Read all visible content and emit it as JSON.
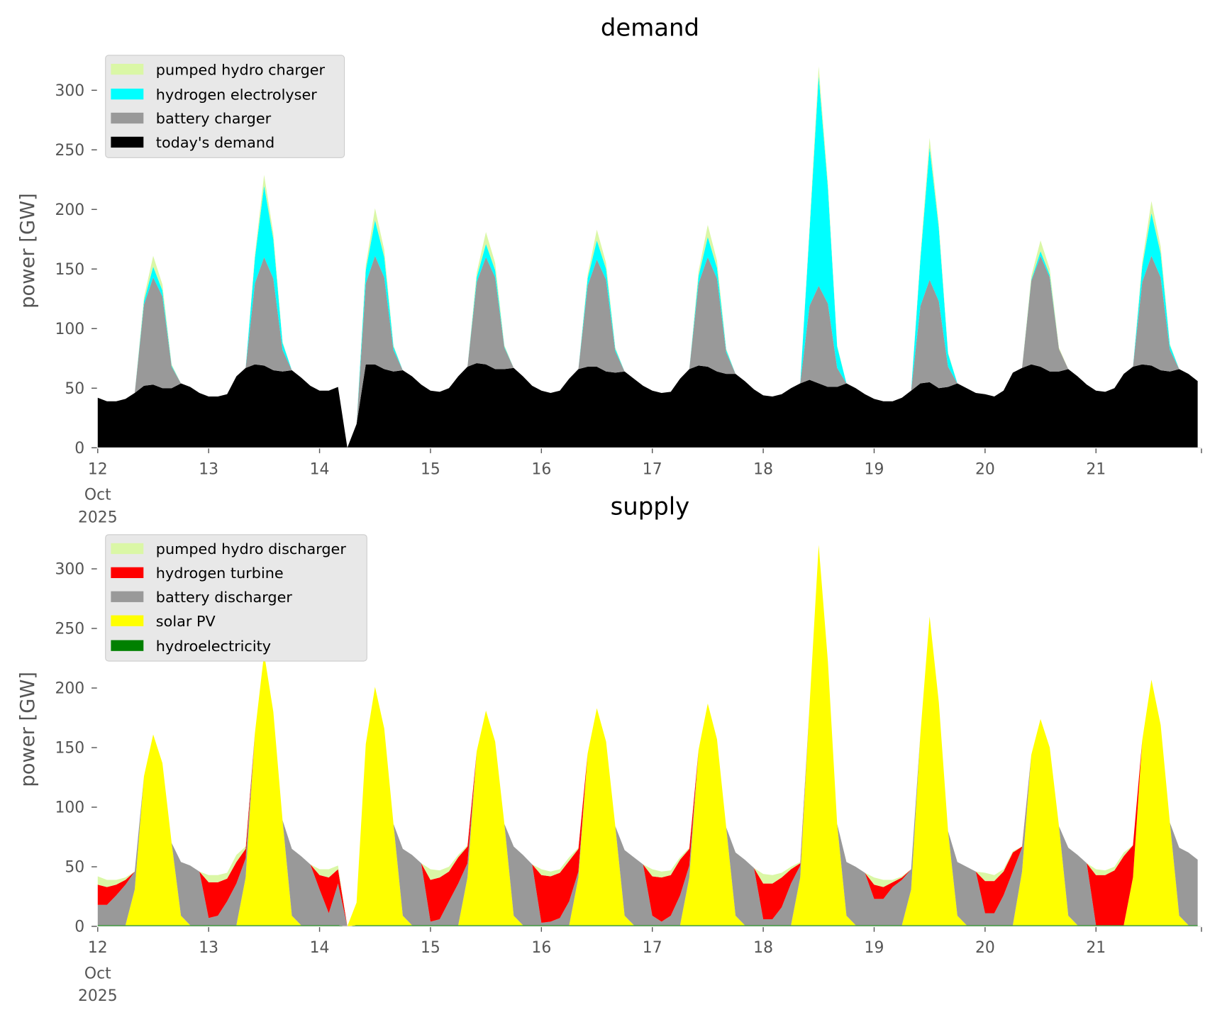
{
  "chart_data": [
    {
      "type": "area",
      "stacked": true,
      "title": "demand",
      "xlabel": "",
      "ylabel": "power [GW]",
      "ylim": [
        0,
        330
      ],
      "yticks": [
        0,
        50,
        100,
        150,
        200,
        250,
        300
      ],
      "x_start": "2025-10-12 00:00",
      "step_hours": 2,
      "xticklabels": [
        "12",
        "13",
        "14",
        "15",
        "16",
        "17",
        "18",
        "19",
        "20",
        "21"
      ],
      "xtick_sublabels": [
        "Oct",
        "2025"
      ],
      "grid": false,
      "legend_location": "upper-left",
      "series": [
        {
          "name": "today's demand",
          "color": "#000000",
          "values": [
            42,
            39,
            39,
            41,
            46,
            52,
            53,
            50,
            50,
            54,
            51,
            46,
            43,
            43,
            45,
            60,
            67,
            70,
            69,
            65,
            64,
            65,
            59,
            52,
            48,
            48,
            51,
            0,
            20,
            70,
            70,
            66,
            64,
            65,
            60,
            53,
            48,
            47,
            50,
            60,
            68,
            71,
            70,
            66,
            66,
            67,
            60,
            52,
            48,
            46,
            48,
            58,
            66,
            68,
            68,
            64,
            63,
            64,
            58,
            52,
            48,
            46,
            47,
            58,
            66,
            69,
            68,
            64,
            62,
            62,
            56,
            49,
            44,
            43,
            45,
            50,
            54,
            57,
            54,
            51,
            51,
            54,
            50,
            45,
            41,
            39,
            39,
            42,
            48,
            54,
            55,
            50,
            51,
            54,
            50,
            46,
            45,
            43,
            48,
            63,
            67,
            70,
            68,
            64,
            64,
            66,
            60,
            53,
            48,
            47,
            50,
            62,
            68,
            70,
            69,
            65,
            64,
            66,
            62,
            56
          ]
        },
        {
          "name": "battery charger",
          "color": "#999999",
          "values": [
            0,
            0,
            0,
            0,
            0,
            68,
            90,
            77,
            18,
            0,
            0,
            0,
            0,
            0,
            0,
            0,
            0,
            68,
            91,
            77,
            18,
            0,
            0,
            0,
            0,
            0,
            0,
            0,
            0,
            68,
            91,
            77,
            18,
            0,
            0,
            0,
            0,
            0,
            0,
            0,
            0,
            68,
            90,
            77,
            18,
            0,
            0,
            0,
            0,
            0,
            0,
            0,
            0,
            68,
            90,
            77,
            18,
            0,
            0,
            0,
            0,
            0,
            0,
            0,
            0,
            69,
            92,
            78,
            18,
            0,
            0,
            0,
            0,
            0,
            0,
            0,
            0,
            62,
            82,
            70,
            16,
            0,
            0,
            0,
            0,
            0,
            0,
            0,
            0,
            65,
            86,
            73,
            17,
            0,
            0,
            0,
            0,
            0,
            0,
            0,
            0,
            70,
            93,
            79,
            19,
            0,
            0,
            0,
            0,
            0,
            0,
            0,
            0,
            69,
            92,
            78,
            18,
            0,
            0,
            0
          ]
        },
        {
          "name": "hydrogen electrolyser",
          "color": "#00ffff",
          "values": [
            0,
            0,
            0,
            0,
            0,
            3,
            9,
            5,
            1,
            0,
            0,
            0,
            0,
            0,
            0,
            0,
            0,
            21,
            60,
            33,
            6,
            0,
            0,
            0,
            0,
            0,
            0,
            0,
            0,
            11,
            30,
            17,
            3,
            0,
            0,
            0,
            0,
            0,
            0,
            0,
            0,
            4,
            11,
            6,
            1,
            0,
            0,
            0,
            0,
            0,
            0,
            0,
            0,
            6,
            16,
            9,
            2,
            0,
            0,
            0,
            0,
            0,
            0,
            0,
            0,
            6,
            17,
            9,
            2,
            0,
            0,
            0,
            0,
            0,
            0,
            0,
            0,
            62,
            176,
            97,
            18,
            0,
            0,
            0,
            0,
            0,
            0,
            0,
            0,
            39,
            111,
            61,
            11,
            0,
            0,
            0,
            0,
            0,
            0,
            0,
            0,
            1,
            4,
            2,
            0,
            0,
            0,
            0,
            0,
            0,
            0,
            0,
            0,
            13,
            36,
            20,
            4,
            0,
            0,
            0
          ]
        },
        {
          "name": "pumped hydro charger",
          "color": "#daf7a6",
          "values": [
            0,
            0,
            0,
            0,
            0,
            3,
            9,
            5,
            1,
            0,
            0,
            0,
            0,
            0,
            0,
            0,
            0,
            3,
            9,
            5,
            1,
            0,
            0,
            0,
            0,
            0,
            0,
            0,
            0,
            4,
            10,
            6,
            1,
            0,
            0,
            0,
            0,
            0,
            0,
            0,
            0,
            4,
            10,
            6,
            1,
            0,
            0,
            0,
            0,
            0,
            0,
            0,
            0,
            3,
            9,
            5,
            1,
            0,
            0,
            0,
            0,
            0,
            0,
            0,
            0,
            4,
            10,
            6,
            1,
            0,
            0,
            0,
            0,
            0,
            0,
            0,
            0,
            3,
            8,
            4,
            1,
            0,
            0,
            0,
            0,
            0,
            0,
            0,
            0,
            3,
            8,
            4,
            1,
            0,
            0,
            0,
            0,
            0,
            0,
            0,
            0,
            3,
            9,
            5,
            1,
            0,
            0,
            0,
            0,
            0,
            0,
            0,
            0,
            4,
            10,
            6,
            1,
            0,
            0,
            0
          ]
        }
      ]
    },
    {
      "type": "area",
      "stacked": true,
      "title": "supply",
      "xlabel": "",
      "ylabel": "power [GW]",
      "ylim": [
        0,
        330
      ],
      "yticks": [
        0,
        50,
        100,
        150,
        200,
        250,
        300
      ],
      "x_start": "2025-10-12 00:00",
      "step_hours": 2,
      "xticklabels": [
        "12",
        "13",
        "14",
        "15",
        "16",
        "17",
        "18",
        "19",
        "20",
        "21"
      ],
      "xtick_sublabels": [
        "Oct",
        "2025"
      ],
      "grid": false,
      "legend_location": "upper-left",
      "series": [
        {
          "name": "hydroelectricity",
          "color": "#008000",
          "values": [
            1,
            1,
            1,
            1,
            1,
            1,
            1,
            1,
            1,
            1,
            1,
            1,
            1,
            1,
            1,
            1,
            1,
            1,
            1,
            1,
            1,
            1,
            1,
            1,
            1,
            1,
            1,
            0,
            1,
            1,
            1,
            1,
            1,
            1,
            1,
            1,
            1,
            1,
            1,
            1,
            1,
            1,
            1,
            1,
            1,
            1,
            1,
            1,
            1,
            1,
            1,
            1,
            1,
            1,
            1,
            1,
            1,
            1,
            1,
            1,
            1,
            1,
            1,
            1,
            1,
            1,
            1,
            1,
            1,
            1,
            1,
            1,
            1,
            1,
            1,
            1,
            1,
            1,
            1,
            1,
            1,
            1,
            1,
            1,
            1,
            1,
            1,
            1,
            1,
            1,
            1,
            1,
            1,
            1,
            1,
            1,
            1,
            1,
            1,
            1,
            1,
            1,
            1,
            1,
            1,
            1,
            1,
            1,
            1,
            1,
            1,
            1,
            1,
            1,
            1,
            1,
            1,
            1,
            1,
            1
          ]
        },
        {
          "name": "solar PV",
          "color": "#ffff00",
          "values": [
            0,
            0,
            0,
            0,
            30,
            125,
            160,
            136,
            69,
            8,
            0,
            0,
            0,
            0,
            0,
            0,
            40,
            161,
            228,
            179,
            88,
            8,
            0,
            0,
            0,
            0,
            0,
            0,
            19,
            152,
            200,
            165,
            85,
            8,
            0,
            0,
            0,
            0,
            0,
            0,
            40,
            146,
            180,
            154,
            85,
            8,
            0,
            0,
            0,
            0,
            0,
            0,
            40,
            144,
            182,
            154,
            83,
            8,
            0,
            0,
            0,
            0,
            0,
            0,
            40,
            147,
            186,
            156,
            82,
            8,
            0,
            0,
            0,
            0,
            0,
            0,
            40,
            183,
            319,
            221,
            85,
            8,
            0,
            0,
            0,
            0,
            0,
            0,
            30,
            160,
            259,
            187,
            79,
            8,
            0,
            0,
            0,
            0,
            0,
            0,
            45,
            143,
            173,
            149,
            83,
            8,
            0,
            0,
            0,
            0,
            0,
            0,
            40,
            155,
            206,
            168,
            86,
            8,
            0,
            0
          ]
        },
        {
          "name": "battery discharger",
          "color": "#999999",
          "values": [
            17,
            17,
            25,
            34,
            15,
            0,
            0,
            0,
            0,
            45,
            50,
            45,
            6,
            8,
            20,
            35,
            16,
            0,
            0,
            0,
            0,
            56,
            58,
            51,
            30,
            10,
            35,
            0,
            0,
            0,
            0,
            0,
            0,
            56,
            59,
            52,
            3,
            5,
            20,
            35,
            12,
            0,
            0,
            0,
            0,
            58,
            59,
            51,
            2,
            3,
            6,
            20,
            5,
            0,
            0,
            0,
            0,
            55,
            57,
            51,
            8,
            3,
            8,
            25,
            10,
            0,
            0,
            0,
            0,
            53,
            55,
            48,
            5,
            5,
            15,
            35,
            10,
            0,
            0,
            0,
            0,
            45,
            49,
            44,
            22,
            22,
            32,
            38,
            17,
            0,
            0,
            0,
            0,
            45,
            49,
            45,
            10,
            10,
            25,
            45,
            20,
            0,
            0,
            0,
            0,
            57,
            59,
            52,
            0,
            0,
            0,
            0,
            0,
            0,
            0,
            0,
            0,
            57,
            61,
            55
          ]
        },
        {
          "name": "hydrogen turbine",
          "color": "#ff0000",
          "values": [
            17,
            15,
            9,
            4,
            0,
            0,
            0,
            0,
            0,
            0,
            0,
            0,
            30,
            28,
            19,
            18,
            8,
            0,
            0,
            0,
            0,
            0,
            0,
            0,
            12,
            30,
            12,
            0,
            0,
            0,
            0,
            0,
            0,
            0,
            0,
            0,
            35,
            35,
            25,
            22,
            14,
            0,
            0,
            0,
            0,
            0,
            0,
            0,
            40,
            38,
            38,
            34,
            19,
            0,
            0,
            0,
            0,
            0,
            0,
            0,
            33,
            37,
            34,
            30,
            14,
            0,
            0,
            0,
            0,
            0,
            0,
            0,
            30,
            30,
            25,
            12,
            2,
            0,
            0,
            0,
            0,
            0,
            0,
            0,
            12,
            10,
            4,
            2,
            0,
            0,
            0,
            0,
            0,
            0,
            0,
            0,
            27,
            27,
            20,
            16,
            1,
            0,
            0,
            0,
            0,
            0,
            0,
            0,
            42,
            42,
            46,
            58,
            27,
            0,
            0,
            0,
            0,
            0,
            0,
            0
          ]
        },
        {
          "name": "pumped hydro discharger",
          "color": "#daf7a6",
          "values": [
            7,
            6,
            4,
            2,
            0,
            0,
            0,
            0,
            0,
            0,
            0,
            0,
            6,
            6,
            5,
            6,
            2,
            0,
            0,
            0,
            0,
            0,
            0,
            0,
            5,
            7,
            3,
            0,
            0,
            0,
            0,
            0,
            0,
            0,
            0,
            0,
            9,
            6,
            4,
            2,
            1,
            0,
            0,
            0,
            0,
            0,
            0,
            0,
            5,
            4,
            3,
            3,
            1,
            0,
            0,
            0,
            0,
            0,
            0,
            0,
            6,
            5,
            4,
            2,
            1,
            0,
            0,
            0,
            0,
            0,
            0,
            0,
            8,
            7,
            4,
            2,
            1,
            0,
            0,
            0,
            0,
            0,
            0,
            0,
            6,
            6,
            2,
            1,
            0,
            0,
            0,
            0,
            0,
            0,
            0,
            0,
            7,
            5,
            2,
            1,
            0,
            0,
            0,
            0,
            0,
            0,
            0,
            0,
            5,
            4,
            3,
            3,
            0,
            0,
            0,
            0,
            0,
            0,
            0,
            0
          ]
        }
      ]
    }
  ]
}
